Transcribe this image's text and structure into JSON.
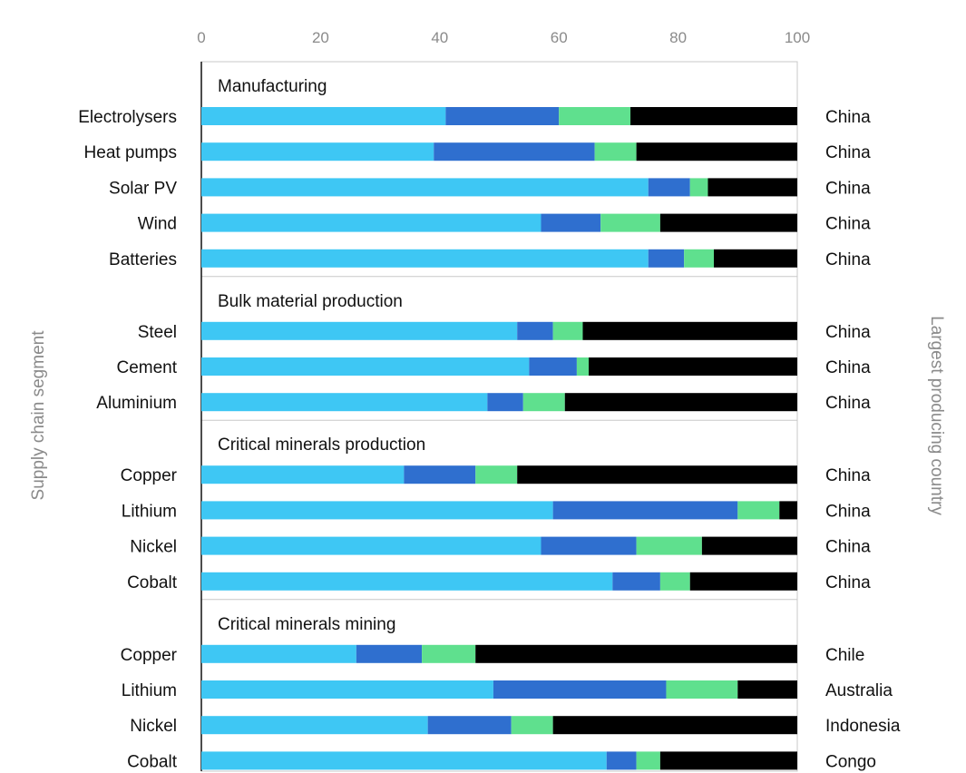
{
  "chart_data": {
    "type": "bar",
    "orientation": "horizontal",
    "stacked": true,
    "xlim": [
      0,
      100
    ],
    "x_ticks": [
      "0",
      "20",
      "40",
      "60",
      "80",
      "100"
    ],
    "ylabel_left": "Supply chain segment",
    "ylabel_right": "Largest producing country",
    "colors": [
      "#3ec7f4",
      "#2f6fcf",
      "#5fe08e",
      "#000000"
    ],
    "groups": [
      {
        "name": "Manufacturing",
        "rows": [
          {
            "label": "Electrolysers",
            "country": "China",
            "values": [
              41,
              19,
              12,
              28
            ]
          },
          {
            "label": "Heat pumps",
            "country": "China",
            "values": [
              39,
              27,
              7,
              27
            ]
          },
          {
            "label": "Solar PV",
            "country": "China",
            "values": [
              75,
              7,
              3,
              15
            ]
          },
          {
            "label": "Wind",
            "country": "China",
            "values": [
              57,
              10,
              10,
              23
            ]
          },
          {
            "label": "Batteries",
            "country": "China",
            "values": [
              75,
              6,
              5,
              14
            ]
          }
        ]
      },
      {
        "name": "Bulk material production",
        "rows": [
          {
            "label": "Steel",
            "country": "China",
            "values": [
              53,
              6,
              5,
              36
            ]
          },
          {
            "label": "Cement",
            "country": "China",
            "values": [
              55,
              8,
              2,
              35
            ]
          },
          {
            "label": "Aluminium",
            "country": "China",
            "values": [
              48,
              6,
              7,
              39
            ]
          }
        ]
      },
      {
        "name": "Critical minerals production",
        "rows": [
          {
            "label": "Copper",
            "country": "China",
            "values": [
              34,
              12,
              7,
              47
            ]
          },
          {
            "label": "Lithium",
            "country": "China",
            "values": [
              59,
              31,
              7,
              3
            ]
          },
          {
            "label": "Nickel",
            "country": "China",
            "values": [
              57,
              16,
              11,
              16
            ]
          },
          {
            "label": "Cobalt",
            "country": "China",
            "values": [
              69,
              8,
              5,
              18
            ]
          }
        ]
      },
      {
        "name": "Critical minerals mining",
        "rows": [
          {
            "label": "Copper",
            "country": "Chile",
            "values": [
              26,
              11,
              9,
              54
            ]
          },
          {
            "label": "Lithium",
            "country": "Australia",
            "values": [
              49,
              29,
              12,
              10
            ]
          },
          {
            "label": "Nickel",
            "country": "Indonesia",
            "values": [
              38,
              14,
              7,
              41
            ]
          },
          {
            "label": "Cobalt",
            "country": "Congo",
            "values": [
              68,
              5,
              4,
              23
            ]
          }
        ]
      }
    ]
  }
}
